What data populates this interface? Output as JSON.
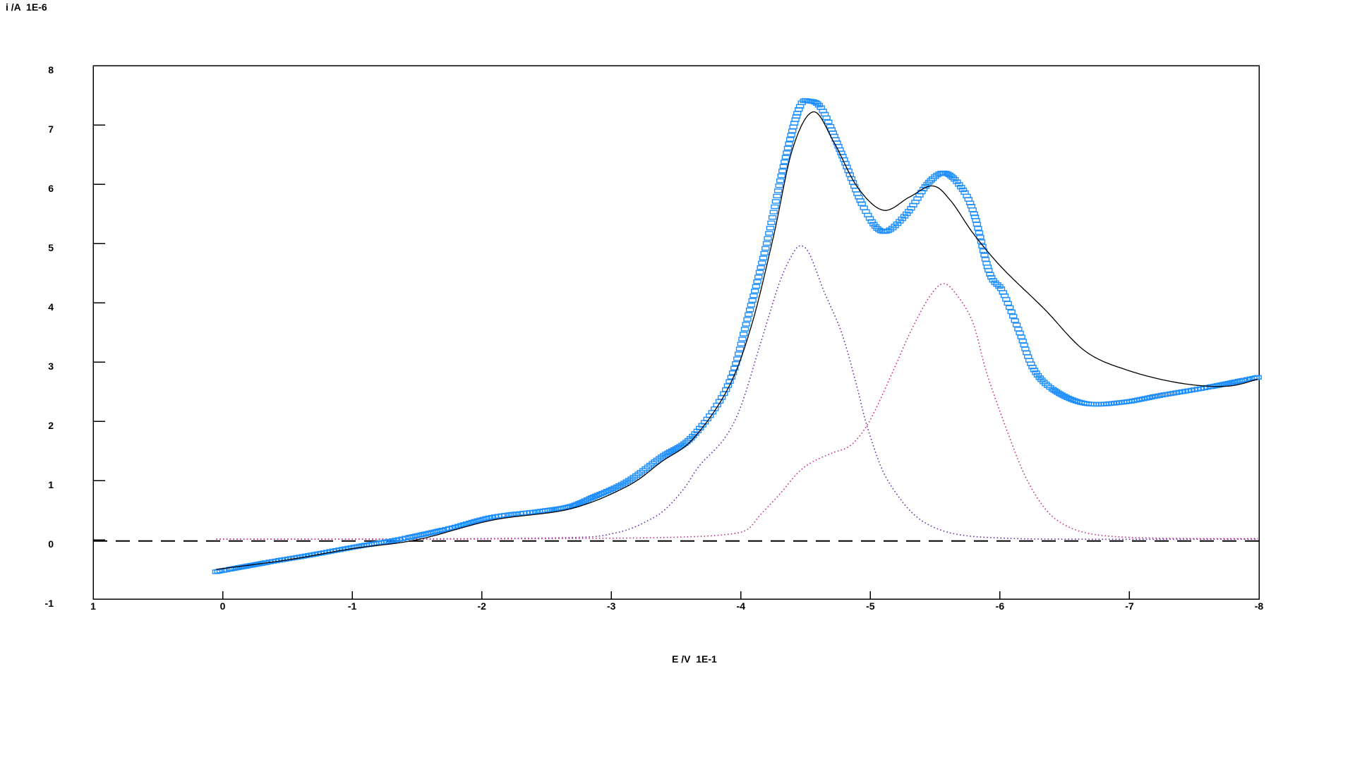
{
  "chart_meta": {
    "y_axis_title": "i /A  1E-6",
    "x_axis_title": "E /V  1E-1",
    "background_color": "#ffffff",
    "frame_color": "#000000",
    "colors": {
      "measured": "#1e8fff",
      "fit": "#000000",
      "component1": "#6f2fa8",
      "component2": "#c2338f",
      "baseline": "#000000"
    }
  },
  "chart_data": {
    "type": "line",
    "title": "",
    "xlabel": "E /V  1E-1",
    "ylabel": "i /A  1E-6",
    "xlim": [
      1,
      -8
    ],
    "ylim": [
      -1,
      8
    ],
    "x_ticks": [
      "1",
      "0",
      "-1",
      "-2",
      "-3",
      "-4",
      "-5",
      "-6",
      "-7",
      "-8"
    ],
    "y_ticks": [
      "8",
      "7",
      "6",
      "5",
      "4",
      "3",
      "2",
      "1",
      "0",
      "-1"
    ],
    "grid": false,
    "legend_position": "none",
    "series": [
      {
        "name": "baseline",
        "style": "dashed",
        "color": "#000000",
        "points": [
          [
            1.0,
            -0.02
          ],
          [
            -8.0,
            -0.02
          ]
        ]
      },
      {
        "name": "fit-component-1",
        "style": "dotted",
        "color": "#6f2fa8",
        "points": [
          [
            0.05,
            0.01
          ],
          [
            -1.0,
            0.01
          ],
          [
            -2.0,
            0.02
          ],
          [
            -2.5,
            0.03
          ],
          [
            -2.85,
            0.05
          ],
          [
            -3.0,
            0.1
          ],
          [
            -3.14,
            0.18
          ],
          [
            -3.28,
            0.32
          ],
          [
            -3.41,
            0.5
          ],
          [
            -3.56,
            0.86
          ],
          [
            -3.68,
            1.25
          ],
          [
            -3.87,
            1.7
          ],
          [
            -4.0,
            2.25
          ],
          [
            -4.15,
            3.3
          ],
          [
            -4.3,
            4.35
          ],
          [
            -4.4,
            4.82
          ],
          [
            -4.46,
            4.96
          ],
          [
            -4.53,
            4.82
          ],
          [
            -4.64,
            4.2
          ],
          [
            -4.78,
            3.48
          ],
          [
            -4.9,
            2.55
          ],
          [
            -4.97,
            1.95
          ],
          [
            -5.09,
            1.19
          ],
          [
            -5.22,
            0.72
          ],
          [
            -5.35,
            0.4
          ],
          [
            -5.5,
            0.2
          ],
          [
            -5.7,
            0.08
          ],
          [
            -6.0,
            0.03
          ],
          [
            -6.5,
            0.01
          ],
          [
            -7.99,
            0.01
          ]
        ]
      },
      {
        "name": "fit-component-2",
        "style": "dotted",
        "color": "#c2338f",
        "points": [
          [
            0.05,
            0.01
          ],
          [
            -1.5,
            0.01
          ],
          [
            -2.5,
            0.02
          ],
          [
            -3.2,
            0.03
          ],
          [
            -3.6,
            0.05
          ],
          [
            -3.85,
            0.08
          ],
          [
            -4.04,
            0.16
          ],
          [
            -4.15,
            0.42
          ],
          [
            -4.3,
            0.77
          ],
          [
            -4.44,
            1.13
          ],
          [
            -4.55,
            1.31
          ],
          [
            -4.7,
            1.46
          ],
          [
            -4.84,
            1.58
          ],
          [
            -4.95,
            1.85
          ],
          [
            -5.04,
            2.2
          ],
          [
            -5.19,
            2.92
          ],
          [
            -5.31,
            3.51
          ],
          [
            -5.45,
            4.08
          ],
          [
            -5.56,
            4.32
          ],
          [
            -5.66,
            4.15
          ],
          [
            -5.79,
            3.67
          ],
          [
            -5.9,
            2.8
          ],
          [
            -6.06,
            1.81
          ],
          [
            -6.2,
            1.05
          ],
          [
            -6.35,
            0.52
          ],
          [
            -6.5,
            0.25
          ],
          [
            -6.7,
            0.1
          ],
          [
            -7.0,
            0.04
          ],
          [
            -7.5,
            0.02
          ],
          [
            -7.99,
            0.02
          ]
        ]
      },
      {
        "name": "measured-data",
        "style": "square-markers",
        "color": "#1e8fff",
        "marker": {
          "width": 10,
          "height": 5,
          "stroke_width": 1.4
        },
        "points": [
          [
            0.05,
            -0.54
          ],
          [
            -0.35,
            -0.38
          ],
          [
            -0.7,
            -0.25
          ],
          [
            -1.05,
            -0.11
          ],
          [
            -1.35,
            0.0
          ],
          [
            -1.75,
            0.19
          ],
          [
            -2.08,
            0.38
          ],
          [
            -2.45,
            0.48
          ],
          [
            -2.68,
            0.56
          ],
          [
            -2.85,
            0.71
          ],
          [
            -3.12,
            0.98
          ],
          [
            -3.39,
            1.4
          ],
          [
            -3.63,
            1.75
          ],
          [
            -3.9,
            2.6
          ],
          [
            -4.06,
            3.8
          ],
          [
            -4.2,
            5.0
          ],
          [
            -4.33,
            6.3
          ],
          [
            -4.45,
            7.28
          ],
          [
            -4.53,
            7.4
          ],
          [
            -4.63,
            7.25
          ],
          [
            -4.78,
            6.5
          ],
          [
            -4.95,
            5.6
          ],
          [
            -5.1,
            5.2
          ],
          [
            -5.28,
            5.5
          ],
          [
            -5.44,
            6.0
          ],
          [
            -5.57,
            6.19
          ],
          [
            -5.7,
            5.95
          ],
          [
            -5.8,
            5.5
          ],
          [
            -5.92,
            4.5
          ],
          [
            -6.02,
            4.19
          ],
          [
            -6.15,
            3.51
          ],
          [
            -6.26,
            2.88
          ],
          [
            -6.42,
            2.52
          ],
          [
            -6.66,
            2.3
          ],
          [
            -6.95,
            2.32
          ],
          [
            -7.25,
            2.44
          ],
          [
            -7.6,
            2.57
          ],
          [
            -7.99,
            2.74
          ]
        ]
      },
      {
        "name": "fit-total",
        "style": "solid",
        "color": "#000000",
        "points": [
          [
            0.05,
            -0.5
          ],
          [
            -0.5,
            -0.34
          ],
          [
            -1.0,
            -0.15
          ],
          [
            -1.5,
            0.0
          ],
          [
            -2.08,
            0.33
          ],
          [
            -2.68,
            0.52
          ],
          [
            -3.12,
            0.9
          ],
          [
            -3.39,
            1.32
          ],
          [
            -3.63,
            1.7
          ],
          [
            -3.9,
            2.55
          ],
          [
            -4.08,
            3.6
          ],
          [
            -4.25,
            5.1
          ],
          [
            -4.4,
            6.6
          ],
          [
            -4.56,
            7.22
          ],
          [
            -4.72,
            6.7
          ],
          [
            -4.9,
            5.95
          ],
          [
            -5.1,
            5.56
          ],
          [
            -5.3,
            5.78
          ],
          [
            -5.48,
            5.97
          ],
          [
            -5.62,
            5.72
          ],
          [
            -5.8,
            5.15
          ],
          [
            -6.02,
            4.58
          ],
          [
            -6.34,
            3.9
          ],
          [
            -6.66,
            3.18
          ],
          [
            -7.0,
            2.85
          ],
          [
            -7.4,
            2.64
          ],
          [
            -7.75,
            2.59
          ],
          [
            -7.99,
            2.71
          ]
        ]
      }
    ]
  }
}
